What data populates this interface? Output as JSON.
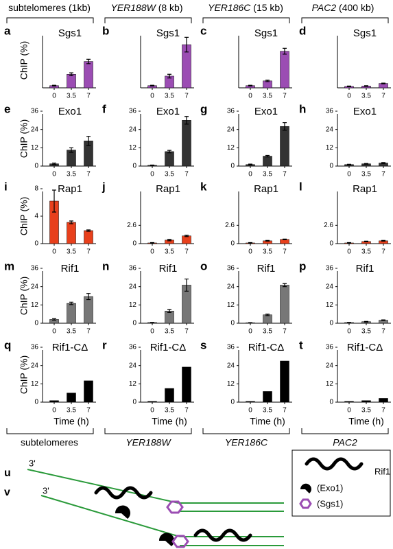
{
  "headers": [
    {
      "gene": "subtelomeres",
      "size": "(1kb)"
    },
    {
      "gene": "YER188W",
      "size": "(8 kb)"
    },
    {
      "gene": "YER186C",
      "size": "(15 kb)"
    },
    {
      "gene": "PAC2",
      "size": "(400 kb)"
    }
  ],
  "footer": [
    "subtelomeres",
    "YER188W",
    "YER186C",
    "PAC2"
  ],
  "chart_data": [
    {
      "type": "bar",
      "panel": "a",
      "title": "Sgs1",
      "ylabel": "ChIP (%)",
      "categories": [
        "0",
        "3.5",
        "7"
      ],
      "values": [
        0.6,
        3.7,
        7.2
      ],
      "errors": [
        0.1,
        0.4,
        0.6
      ],
      "ylim": [
        0,
        15
      ],
      "color": "#9b4db3"
    },
    {
      "type": "bar",
      "panel": "b",
      "title": "Sgs1",
      "categories": [
        "0",
        "3.5",
        "7"
      ],
      "values": [
        0.6,
        3.2,
        11.8
      ],
      "errors": [
        0.1,
        0.5,
        2
      ],
      "ylim": [
        0,
        15
      ],
      "color": "#9b4db3"
    },
    {
      "type": "bar",
      "panel": "c",
      "title": "Sgs1",
      "categories": [
        "0",
        "3.5",
        "7"
      ],
      "values": [
        0.6,
        1.9,
        10
      ],
      "errors": [
        0.1,
        0.2,
        0.8
      ],
      "ylim": [
        0,
        15
      ],
      "color": "#9b4db3"
    },
    {
      "type": "bar",
      "panel": "d",
      "title": "Sgs1",
      "categories": [
        "0",
        "3.5",
        "7"
      ],
      "values": [
        0.4,
        0.5,
        1.2
      ],
      "errors": [
        0.1,
        0.1,
        0.1
      ],
      "ylim": [
        0,
        15
      ],
      "color": "#9b4db3"
    },
    {
      "type": "bar",
      "panel": "e",
      "title": "Exo1",
      "ylabel": "ChIP (%)",
      "categories": [
        "0",
        "3.5",
        "7"
      ],
      "values": [
        1.5,
        10.5,
        16.5
      ],
      "errors": [
        0.5,
        1.5,
        3
      ],
      "ylim": [
        0,
        36
      ],
      "yticks": [
        0,
        12,
        24,
        36
      ],
      "color": "#333333"
    },
    {
      "type": "bar",
      "panel": "f",
      "title": "Exo1",
      "categories": [
        "0",
        "3.5",
        "7"
      ],
      "values": [
        0.5,
        9.5,
        30
      ],
      "errors": [
        0.2,
        0.8,
        2.5
      ],
      "ylim": [
        0,
        36
      ],
      "yticks": [
        0,
        12,
        24,
        36
      ],
      "color": "#333333"
    },
    {
      "type": "bar",
      "panel": "g",
      "title": "Exo1",
      "categories": [
        "0",
        "3.5",
        "7"
      ],
      "values": [
        1,
        6.5,
        26
      ],
      "errors": [
        0.3,
        0.5,
        2.5
      ],
      "ylim": [
        0,
        36
      ],
      "yticks": [
        0,
        12,
        24,
        36
      ],
      "color": "#333333"
    },
    {
      "type": "bar",
      "panel": "h",
      "title": "Exo1",
      "categories": [
        "0",
        "3.5",
        "7"
      ],
      "values": [
        1,
        1.5,
        2
      ],
      "errors": [
        0.2,
        0.2,
        0.3
      ],
      "ylim": [
        0,
        36
      ],
      "yticks": [
        0,
        12,
        24,
        36
      ],
      "color": "#333333"
    },
    {
      "type": "bar",
      "panel": "i",
      "title": "Rap1",
      "ylabel": "ChIP (%)",
      "categories": [
        "0",
        "3.5",
        "7"
      ],
      "values": [
        6.2,
        3.1,
        1.9
      ],
      "errors": [
        1.6,
        0.2,
        0.1
      ],
      "ylim": [
        0,
        8
      ],
      "yticks": [
        0,
        4,
        8
      ],
      "color": "#e8401c"
    },
    {
      "type": "bar",
      "panel": "j",
      "title": "Rap1",
      "categories": [
        "0",
        "3.5",
        "7"
      ],
      "values": [
        0.1,
        0.5,
        1.1
      ],
      "errors": [
        0.05,
        0.1,
        0.1
      ],
      "ylim": [
        0,
        7.8
      ],
      "yticks": [
        0,
        2.6
      ],
      "color": "#e8401c"
    },
    {
      "type": "bar",
      "panel": "k",
      "title": "Rap1",
      "categories": [
        "0",
        "3.5",
        "7"
      ],
      "values": [
        0.1,
        0.4,
        0.6
      ],
      "errors": [
        0.05,
        0.05,
        0.05
      ],
      "ylim": [
        0,
        7.8
      ],
      "yticks": [
        0,
        2.6
      ],
      "color": "#e8401c"
    },
    {
      "type": "bar",
      "panel": "l",
      "title": "Rap1",
      "categories": [
        "0",
        "3.5",
        "7"
      ],
      "values": [
        0.1,
        0.3,
        0.4
      ],
      "errors": [
        0.05,
        0.05,
        0.05
      ],
      "ylim": [
        0,
        7.8
      ],
      "yticks": [
        0,
        2.6
      ],
      "color": "#e8401c"
    },
    {
      "type": "bar",
      "panel": "m",
      "title": "Rif1",
      "ylabel": "ChIP (%)",
      "categories": [
        "0",
        "3.5",
        "7"
      ],
      "values": [
        2.5,
        13,
        17.5
      ],
      "errors": [
        0.5,
        0.8,
        2
      ],
      "ylim": [
        0,
        36
      ],
      "yticks": [
        0,
        12,
        24,
        36
      ],
      "color": "#777777"
    },
    {
      "type": "bar",
      "panel": "n",
      "title": "Rif1",
      "categories": [
        "0",
        "3.5",
        "7"
      ],
      "values": [
        0.5,
        8,
        25
      ],
      "errors": [
        0.1,
        1,
        4
      ],
      "ylim": [
        0,
        36
      ],
      "yticks": [
        0,
        12,
        24,
        36
      ],
      "color": "#777777"
    },
    {
      "type": "bar",
      "panel": "o",
      "title": "Rif1",
      "categories": [
        "0",
        "3.5",
        "7"
      ],
      "values": [
        0.3,
        5.5,
        25
      ],
      "errors": [
        0.1,
        0.5,
        1
      ],
      "ylim": [
        0,
        36
      ],
      "yticks": [
        0,
        12,
        24,
        36
      ],
      "color": "#777777"
    },
    {
      "type": "bar",
      "panel": "p",
      "title": "Rif1",
      "categories": [
        "0",
        "3.5",
        "7"
      ],
      "values": [
        0.5,
        1,
        2
      ],
      "errors": [
        0.1,
        0.2,
        0.2
      ],
      "ylim": [
        0,
        36
      ],
      "yticks": [
        0,
        12,
        24,
        36
      ],
      "color": "#777777"
    },
    {
      "type": "bar",
      "panel": "q",
      "title": "Rif1-CΔ",
      "ylabel": "ChIP (%)",
      "xlabel": "Time (h)",
      "categories": [
        "0",
        "3.5",
        "7"
      ],
      "values": [
        1,
        6,
        14
      ],
      "ylim": [
        0,
        36
      ],
      "yticks": [
        0,
        12,
        24,
        36
      ],
      "color": "#000000"
    },
    {
      "type": "bar",
      "panel": "r",
      "title": "Rif1-CΔ",
      "xlabel": "Time (h)",
      "categories": [
        "0",
        "3.5",
        "7"
      ],
      "values": [
        0.5,
        9,
        23
      ],
      "ylim": [
        0,
        36
      ],
      "yticks": [
        0,
        12,
        24,
        36
      ],
      "color": "#000000"
    },
    {
      "type": "bar",
      "panel": "s",
      "title": "Rif1-CΔ",
      "xlabel": "Time (h)",
      "categories": [
        "0",
        "3.5",
        "7"
      ],
      "values": [
        0.5,
        7,
        27
      ],
      "ylim": [
        0,
        36
      ],
      "yticks": [
        0,
        12,
        24,
        36
      ],
      "color": "#000000"
    },
    {
      "type": "bar",
      "panel": "t",
      "title": "Rif1-CΔ",
      "xlabel": "Time (h)",
      "categories": [
        "0",
        "3.5",
        "7"
      ],
      "values": [
        0.5,
        1,
        2.5
      ],
      "ylim": [
        0,
        36
      ],
      "yticks": [
        0,
        12,
        24,
        36
      ],
      "color": "#000000"
    }
  ],
  "diagram": {
    "labels": [
      "u",
      "v"
    ],
    "ends": [
      "3'",
      "3'"
    ],
    "legend": [
      "Rif1",
      "(Exo1)",
      "(Sgs1)"
    ]
  }
}
